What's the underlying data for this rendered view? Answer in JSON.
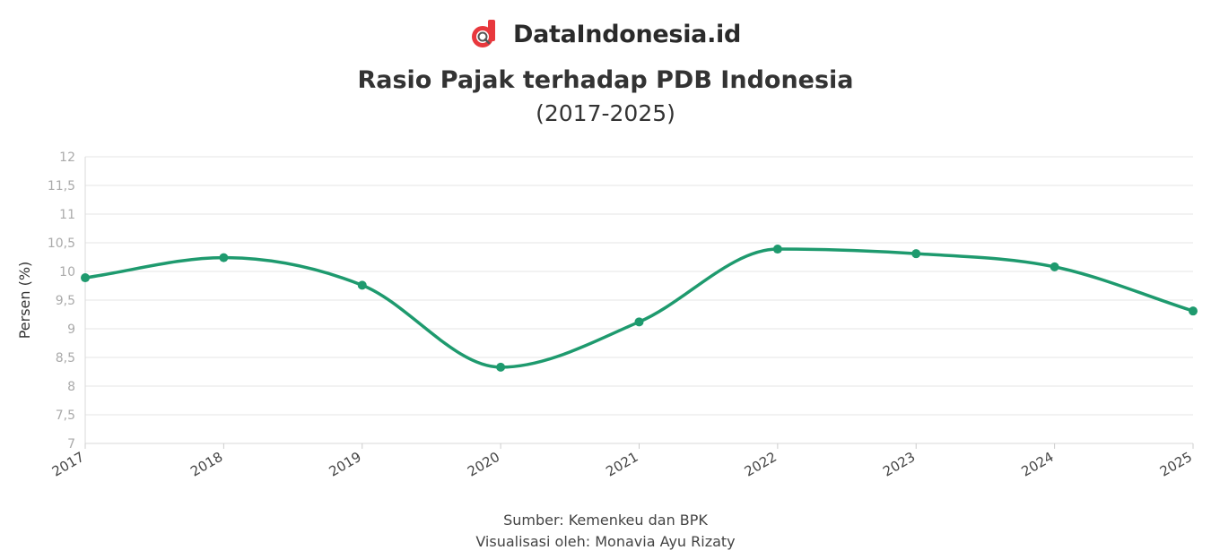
{
  "brand": {
    "name": "DataIndonesia.id",
    "logo_color": "#e8383d",
    "logo_icon": "magnifier-d-logo-icon"
  },
  "chart_data": {
    "type": "line",
    "title": "Rasio Pajak terhadap PDB Indonesia",
    "subtitle": "(2017-2025)",
    "xlabel": "",
    "ylabel": "Persen (%)",
    "x": [
      "2017",
      "2018",
      "2019",
      "2020",
      "2021",
      "2022",
      "2023",
      "2024",
      "2025"
    ],
    "series": [
      {
        "values": [
          9.89,
          10.24,
          9.76,
          8.33,
          9.12,
          10.39,
          10.31,
          10.08,
          9.31
        ],
        "color": "#1e9a6e"
      }
    ],
    "ylim": [
      7,
      12
    ],
    "yticks": [
      "7",
      "7,5",
      "8",
      "8,5",
      "9",
      "9,5",
      "10",
      "10,5",
      "11",
      "11,5",
      "12"
    ],
    "grid": true,
    "curve": "smooth"
  },
  "footer": {
    "source": "Sumber: Kemenkeu dan BPK",
    "credit": "Visualisasi oleh: Monavia Ayu Rizaty"
  }
}
